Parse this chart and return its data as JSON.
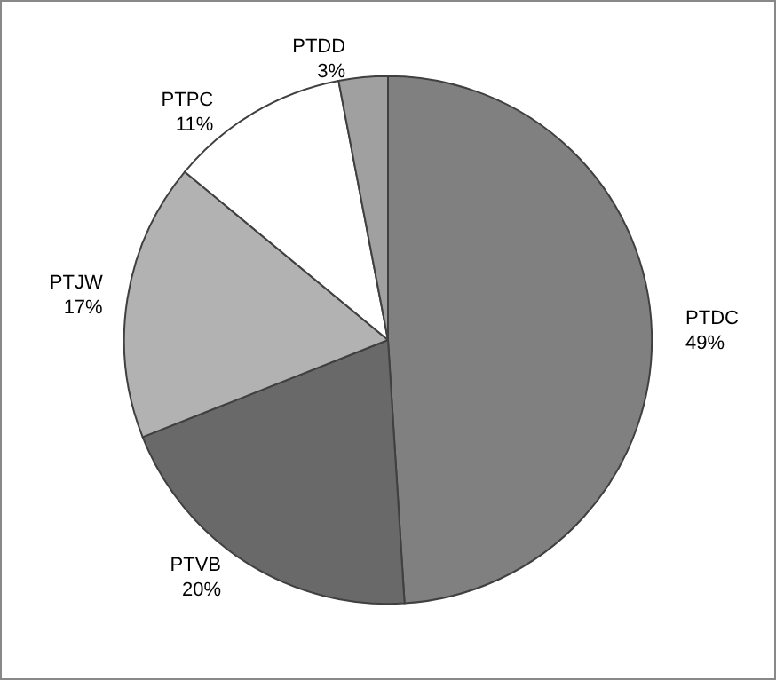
{
  "chart_data": {
    "type": "pie",
    "categories": [
      "PTDC",
      "PTVB",
      "PTJW",
      "PTPC",
      "PTDD"
    ],
    "values": [
      49,
      20,
      17,
      11,
      3
    ],
    "value_labels": [
      "49%",
      "20%",
      "17%",
      "11%",
      "3%"
    ],
    "colors": [
      "#808080",
      "#696969",
      "#b2b2b2",
      "#ffffff",
      "#a0a0a0"
    ],
    "legend": false
  }
}
